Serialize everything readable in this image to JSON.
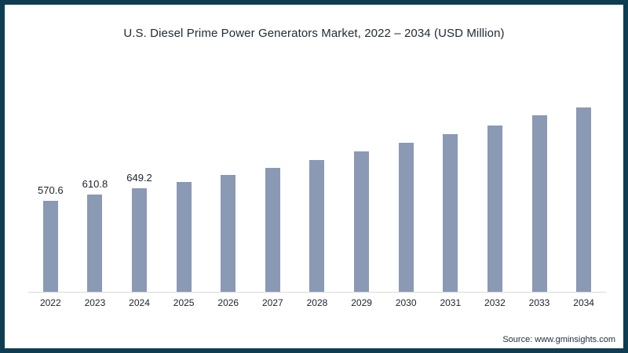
{
  "title": "U.S. Diesel Prime Power Generators Market, 2022 – 2034 (USD Million)",
  "source": "Source: www.gminsights.com",
  "colors": {
    "border_color": "#0E3C50",
    "bar_color": "#8A99B4",
    "axis_color": "#D9D9D9",
    "title_text": "#222B36",
    "label_text": "#1C222B",
    "source_text": "#21303F"
  },
  "chart_data": {
    "type": "bar",
    "title": "U.S. Diesel Prime Power Generators Market, 2022 – 2034 (USD Million)",
    "categories": [
      "2022",
      "2023",
      "2024",
      "2025",
      "2026",
      "2027",
      "2028",
      "2029",
      "2030",
      "2031",
      "2032",
      "2033",
      "2034"
    ],
    "values": [
      570.6,
      610.8,
      649.2,
      688,
      734,
      779,
      828,
      880,
      934,
      990,
      1042,
      1105,
      1156
    ],
    "data_labels": [
      "570.6",
      "610.8",
      "649.2",
      "",
      "",
      "",
      "",
      "",
      "",
      "",
      "",
      "",
      ""
    ],
    "xlabel": "",
    "ylabel": "",
    "ylim": [
      0,
      1240
    ],
    "grid": false,
    "legend": false,
    "y_axis_visible": false,
    "note": "values for 2025-2034 estimated from bar heights; only first three bars carry data labels"
  }
}
